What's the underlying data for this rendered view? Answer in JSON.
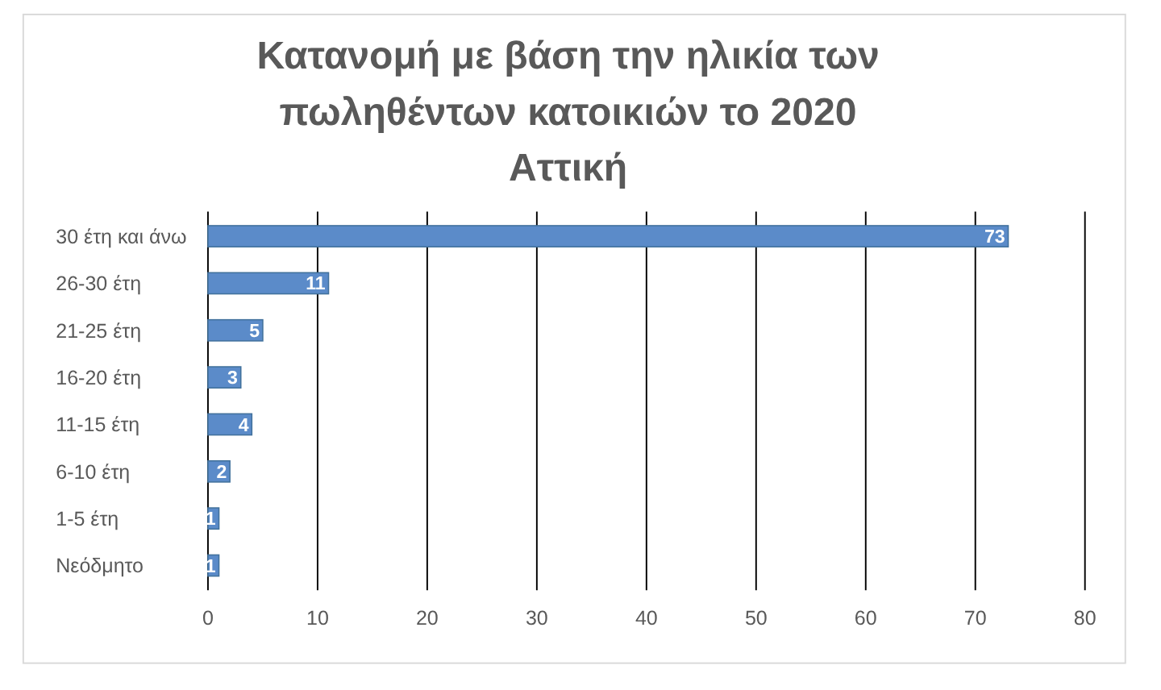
{
  "chart_data": {
    "type": "bar",
    "orientation": "horizontal",
    "title": "Κατανομή με βάση την ηλικία των\nπωληθέντων κατοικιών το 2020\nΑττική",
    "categories": [
      "30 έτη και άνω",
      "26-30 έτη",
      "21-25 έτη",
      "16-20 έτη",
      "11-15 έτη",
      "6-10 έτη",
      "1-5 έτη",
      "Νεόδμητο"
    ],
    "values": [
      73,
      11,
      5,
      3,
      4,
      2,
      1,
      1
    ],
    "color": "#5b8bc9",
    "xlim": [
      0,
      80
    ],
    "xticks": [
      0,
      10,
      20,
      30,
      40,
      50,
      60,
      70,
      80
    ],
    "grid": "x",
    "data_labels": true
  }
}
